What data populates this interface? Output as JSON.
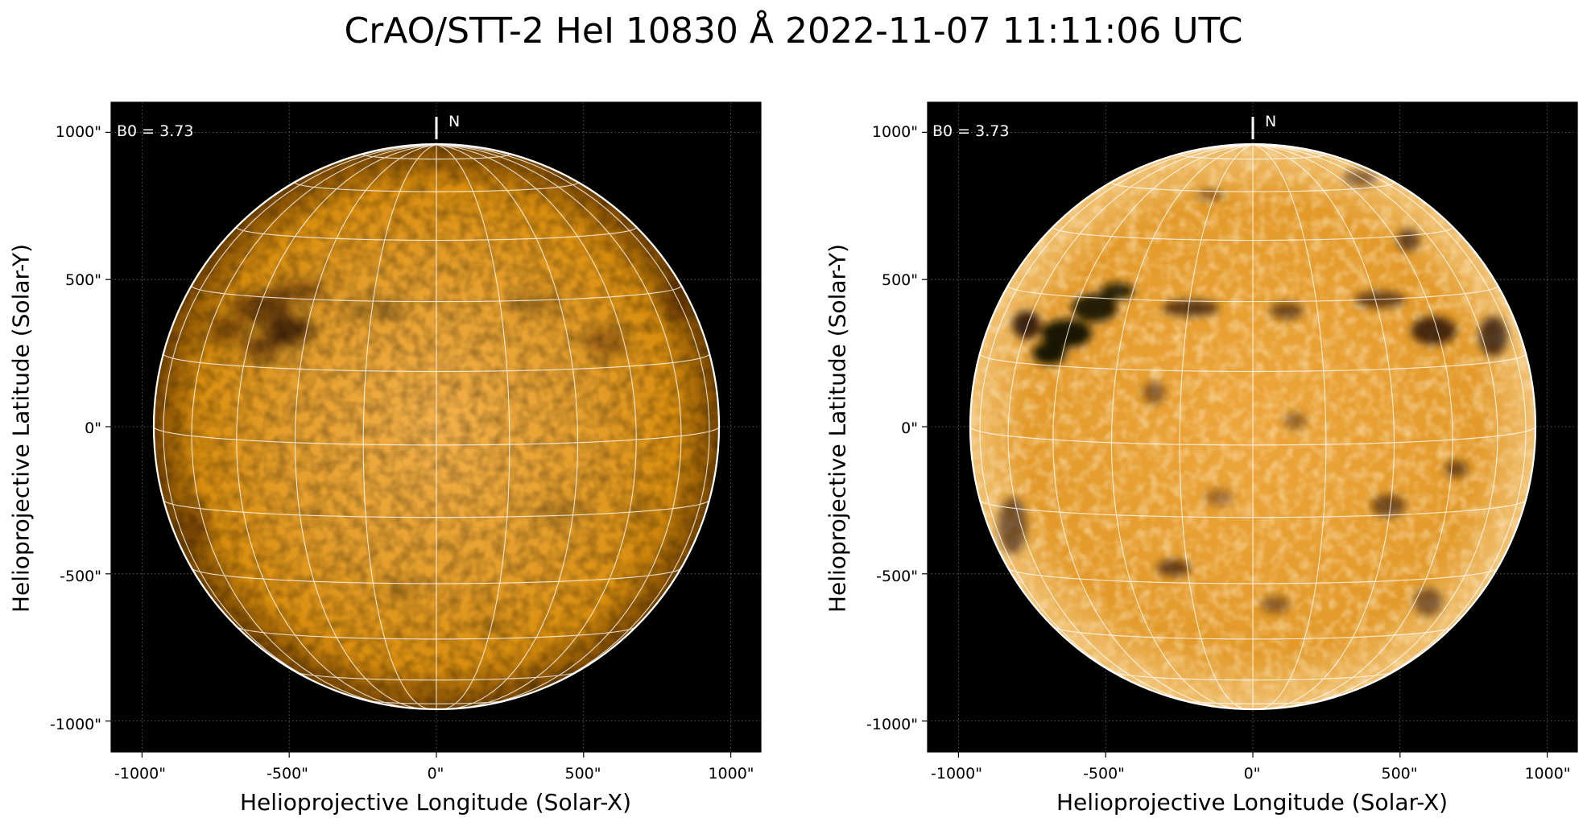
{
  "figure": {
    "title": "CrAO/STT-2 HeI 10830 Å 2022-11-07 11:11:06 UTC"
  },
  "colors": {
    "sky": "#000000",
    "disk_center": "#f4b14a",
    "disk_mid": "#d98e0e",
    "disk_limb": "#7a4700",
    "grid": "#ffffff",
    "dark_feature": "#120800"
  },
  "panels": [
    {
      "name": "left-panel",
      "annotation": "B0 = 3.73",
      "north_label": "N",
      "xlabel": "Helioprojective Longitude (Solar-X)",
      "ylabel": "Helioprojective Latitude (Solar-Y)",
      "xticks": [
        "-1000\"",
        "-500\"",
        "0\"",
        "500\"",
        "1000\""
      ],
      "yticks": [
        "1000\"",
        "500\"",
        "0\"",
        "-500\"",
        "-1000\""
      ]
    },
    {
      "name": "right-panel",
      "annotation": "B0 = 3.73",
      "north_label": "N",
      "xlabel": "Helioprojective Longitude (Solar-X)",
      "ylabel": "Helioprojective Latitude (Solar-Y)",
      "xticks": [
        "-1000\"",
        "-500\"",
        "0\"",
        "500\"",
        "1000\""
      ],
      "yticks": [
        "1000\"",
        "500\"",
        "0\"",
        "-500\"",
        "-1000\""
      ]
    }
  ]
}
